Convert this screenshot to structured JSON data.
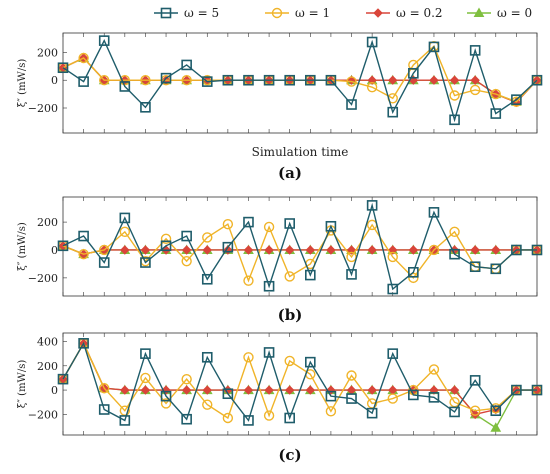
{
  "legend": {
    "entries": [
      {
        "label": "ω = 5",
        "color": "#1f5d6b",
        "marker": "square"
      },
      {
        "label": "ω = 1",
        "color": "#f0b429",
        "marker": "circle"
      },
      {
        "label": "ω = 0.2",
        "color": "#d9453a",
        "marker": "diamond"
      },
      {
        "label": "ω = 0",
        "color": "#7fbf3f",
        "marker": "triangle"
      }
    ]
  },
  "chart_data": [
    {
      "type": "line",
      "panel_label": "(a)",
      "xlabel": "Simulation time",
      "ylabel": "ξ″ (mW/s)",
      "ylim": [
        -380,
        340
      ],
      "yticks": [
        -200,
        0,
        200
      ],
      "x": [
        1,
        2,
        3,
        4,
        5,
        6,
        7,
        8,
        9,
        10,
        11,
        12,
        13,
        14,
        15,
        16,
        17,
        18,
        19,
        20,
        21,
        22,
        23,
        24
      ],
      "series": [
        {
          "name": "ω = 5",
          "values": [
            90,
            -10,
            285,
            -45,
            -195,
            15,
            110,
            -10,
            0,
            0,
            0,
            0,
            0,
            0,
            -175,
            275,
            -230,
            50,
            240,
            -285,
            215,
            -240,
            -140,
            0
          ]
        },
        {
          "name": "ω = 1",
          "values": [
            90,
            160,
            0,
            0,
            0,
            0,
            0,
            0,
            0,
            0,
            0,
            0,
            0,
            0,
            -10,
            -50,
            -130,
            110,
            245,
            -110,
            -70,
            -100,
            -155,
            0
          ]
        },
        {
          "name": "ω = 0.2",
          "values": [
            90,
            160,
            0,
            0,
            0,
            0,
            0,
            0,
            0,
            0,
            0,
            0,
            0,
            0,
            0,
            0,
            0,
            0,
            0,
            0,
            0,
            -100,
            -160,
            0
          ]
        },
        {
          "name": "ω = 0",
          "values": [
            90,
            160,
            0,
            0,
            0,
            0,
            0,
            0,
            0,
            0,
            0,
            0,
            0,
            0,
            0,
            0,
            0,
            0,
            0,
            0,
            0,
            -100,
            -155,
            0
          ]
        }
      ]
    },
    {
      "type": "line",
      "panel_label": "(b)",
      "xlabel": "",
      "ylabel": "ξ″ (mW/s)",
      "ylim": [
        -330,
        380
      ],
      "yticks": [
        -200,
        0,
        200
      ],
      "x": [
        1,
        2,
        3,
        4,
        5,
        6,
        7,
        8,
        9,
        10,
        11,
        12,
        13,
        14,
        15,
        16,
        17,
        18,
        19,
        20,
        21,
        22,
        23,
        24
      ],
      "series": [
        {
          "name": "ω = 5",
          "values": [
            30,
            100,
            -90,
            230,
            -90,
            30,
            100,
            -210,
            20,
            200,
            -260,
            190,
            -180,
            170,
            -175,
            320,
            -280,
            -160,
            270,
            -30,
            -120,
            -135,
            0,
            0
          ]
        },
        {
          "name": "ω = 1",
          "values": [
            30,
            -30,
            0,
            130,
            -80,
            80,
            -80,
            90,
            185,
            -220,
            165,
            -190,
            -100,
            140,
            -50,
            180,
            -50,
            -200,
            0,
            130,
            -120,
            -135,
            0,
            0
          ]
        },
        {
          "name": "ω = 0.2",
          "values": [
            30,
            -30,
            0,
            0,
            0,
            0,
            0,
            0,
            0,
            0,
            0,
            0,
            0,
            0,
            0,
            0,
            0,
            0,
            0,
            0,
            0,
            0,
            0,
            0
          ]
        },
        {
          "name": "ω = 0",
          "values": [
            30,
            -30,
            0,
            0,
            0,
            0,
            0,
            0,
            0,
            0,
            0,
            0,
            0,
            0,
            0,
            0,
            0,
            0,
            0,
            0,
            0,
            0,
            0,
            0
          ]
        }
      ]
    },
    {
      "type": "line",
      "panel_label": "(c)",
      "xlabel": "",
      "ylabel": "ξ″ (mW/s)",
      "ylim": [
        -370,
        470
      ],
      "yticks": [
        -200,
        0,
        200,
        400
      ],
      "x": [
        1,
        2,
        3,
        4,
        5,
        6,
        7,
        8,
        9,
        10,
        11,
        12,
        13,
        14,
        15,
        16,
        17,
        18,
        19,
        20,
        21,
        22,
        23,
        24
      ],
      "series": [
        {
          "name": "ω = 5",
          "values": [
            90,
            385,
            -160,
            -250,
            300,
            -50,
            -240,
            270,
            -30,
            -250,
            310,
            -230,
            230,
            -50,
            -70,
            -190,
            300,
            -40,
            -60,
            -180,
            80,
            -170,
            0,
            0
          ]
        },
        {
          "name": "ω = 1",
          "values": [
            90,
            385,
            15,
            -170,
            100,
            -110,
            90,
            -120,
            -230,
            270,
            -210,
            240,
            130,
            -175,
            120,
            -110,
            -70,
            0,
            170,
            -100,
            -170,
            -150,
            0,
            0
          ]
        },
        {
          "name": "ω = 0.2",
          "values": [
            90,
            385,
            15,
            0,
            0,
            0,
            0,
            0,
            0,
            0,
            0,
            0,
            0,
            0,
            0,
            0,
            0,
            0,
            0,
            0,
            -200,
            -160,
            0,
            0
          ]
        },
        {
          "name": "ω = 0",
          "values": [
            90,
            385,
            15,
            0,
            0,
            0,
            0,
            0,
            0,
            0,
            0,
            0,
            0,
            0,
            0,
            0,
            0,
            0,
            0,
            0,
            -200,
            -310,
            0,
            0
          ]
        }
      ]
    }
  ]
}
